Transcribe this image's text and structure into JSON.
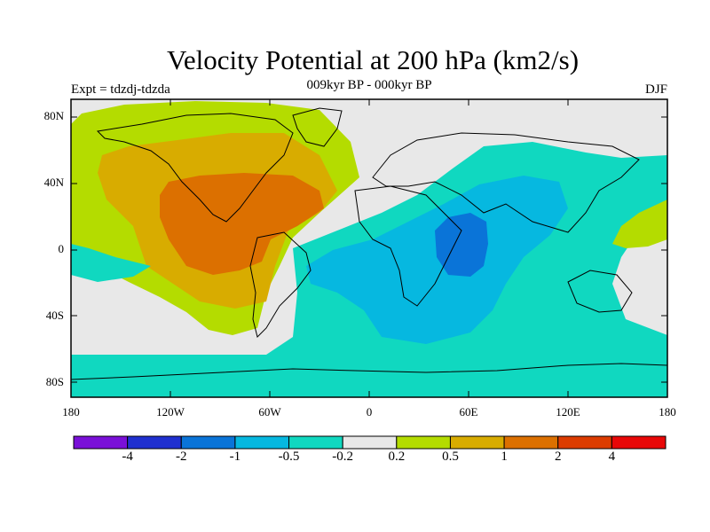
{
  "title": "Velocity Potential at 200 hPa (km2/s)",
  "subtitle": "009kyr BP - 000kyr BP",
  "left_label": "Expt = tdzdj-tdzda",
  "right_label": "DJF",
  "y_ticks": [
    "80N",
    "40N",
    "0",
    "40S",
    "80S"
  ],
  "x_ticks": [
    "180",
    "120W",
    "60W",
    "0",
    "60E",
    "120E",
    "180"
  ],
  "colorbar": {
    "colors": [
      "#7a10d8",
      "#2030d0",
      "#0a74d8",
      "#06b8e0",
      "#10d8c0",
      "#e8e8e8",
      "#b4dc00",
      "#d8ac00",
      "#dc7000",
      "#dc3c00",
      "#e80808"
    ],
    "labels": [
      "-4",
      "-2",
      "-1",
      "-0.5",
      "-0.2",
      "0.2",
      "0.5",
      "1",
      "2",
      "4"
    ]
  },
  "chart_data": {
    "type": "heatmap",
    "title": "Velocity Potential at 200 hPa (km2/s)",
    "subtitle": "009kyr BP - 000kyr BP",
    "xlim": [
      -180,
      180
    ],
    "ylim": [
      -90,
      90
    ],
    "levels": [
      -4,
      -2,
      -1,
      -0.5,
      -0.2,
      0.2,
      0.5,
      1,
      2,
      4
    ],
    "regions": [
      {
        "name": "",
        "value_range": [
          0.2,
          0.5
        ],
        "lon": [
          -172,
          -40
        ],
        "lat": [
          -42,
          72
        ]
      },
      {
        "name": "",
        "value_range": [
          0.5,
          1
        ],
        "lon": [
          -163,
          -58
        ],
        "lat": [
          -28,
          52
        ]
      },
      {
        "name": "",
        "value_range": [
          1,
          2
        ],
        "lon": [
          -128,
          -73
        ],
        "lat": [
          -15,
          40
        ]
      },
      {
        "name": "",
        "value_range": [
          -0.5,
          -0.2
        ],
        "lon": [
          -30,
          180
        ],
        "lat": [
          -88,
          66
        ]
      },
      {
        "name": "",
        "value_range": [
          -1,
          -0.5
        ],
        "lon": [
          -15,
          110
        ],
        "lat": [
          -38,
          46
        ]
      },
      {
        "name": "",
        "value_range": [
          -2,
          -1
        ],
        "lon": [
          38,
          58
        ],
        "lat": [
          -14,
          22
        ]
      },
      {
        "name": "",
        "value_range": [
          0.2,
          0.5
        ],
        "lon": [
          147,
          180
        ],
        "lat": [
          2,
          37
        ]
      }
    ]
  }
}
